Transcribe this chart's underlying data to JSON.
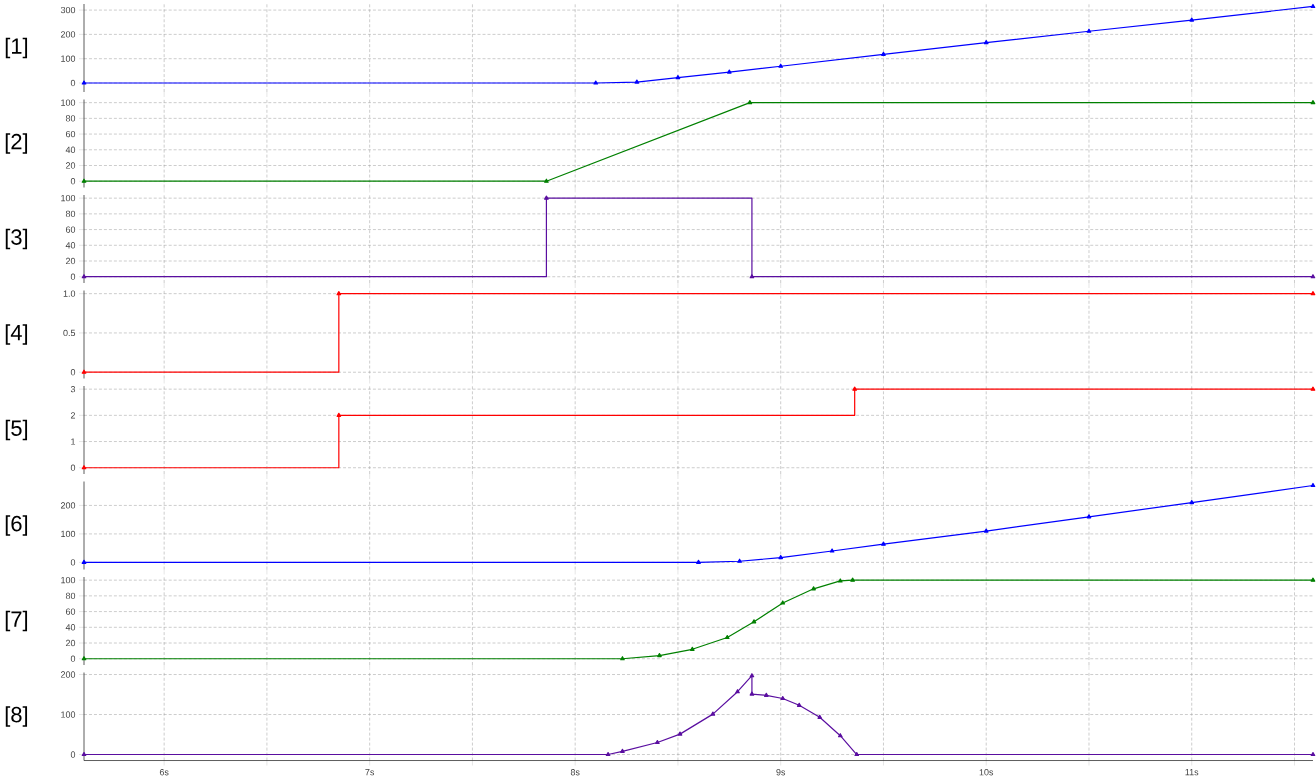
{
  "chart_data": [
    {
      "type": "line",
      "ylabel": "[1]",
      "x": [
        5.61,
        8.1,
        8.3,
        8.5,
        8.75,
        9,
        9.5,
        10,
        10.5,
        11,
        11.59
      ],
      "series": [
        {
          "color": "#0000ff",
          "values": [
            0,
            0,
            4,
            22,
            45,
            69,
            118,
            166,
            213,
            259,
            315
          ]
        }
      ],
      "xlim": [
        5.61,
        11.59
      ],
      "ylim": [
        -37,
        325
      ],
      "yticks": [
        0,
        100,
        200,
        300
      ],
      "xticks": [
        6,
        6.5,
        7,
        7.5,
        8,
        8.5,
        9,
        9.5,
        10,
        10.5,
        11,
        11.5
      ],
      "grid": true,
      "marker": "triangle",
      "tick_labels": "y"
    },
    {
      "type": "line",
      "ylabel": "[2]",
      "x": [
        5.61,
        7.86,
        8.85,
        11.59
      ],
      "series": [
        {
          "color": "#008000",
          "values": [
            0,
            0,
            100,
            100
          ]
        }
      ],
      "xlim": [
        5.61,
        11.59
      ],
      "ylim": [
        -8,
        104
      ],
      "yticks": [
        0,
        20,
        40,
        60,
        80,
        100
      ],
      "xticks": [
        6,
        6.5,
        7,
        7.5,
        8,
        8.5,
        9,
        9.5,
        10,
        10.5,
        11,
        11.5
      ],
      "grid": true,
      "marker": "triangle",
      "tick_labels": "y"
    },
    {
      "type": "step",
      "ylabel": "[3]",
      "x": [
        5.61,
        7.86,
        8.86,
        11.59
      ],
      "series": [
        {
          "color": "#5a0ea0",
          "values": [
            0,
            100,
            0,
            0
          ]
        }
      ],
      "xlim": [
        5.61,
        11.59
      ],
      "ylim": [
        -8,
        104
      ],
      "yticks": [
        0,
        20,
        40,
        60,
        80,
        100
      ],
      "xticks": [
        6,
        6.5,
        7,
        7.5,
        8,
        8.5,
        9,
        9.5,
        10,
        10.5,
        11,
        11.5
      ],
      "grid": true,
      "marker": "triangle",
      "tick_labels": "y"
    },
    {
      "type": "step",
      "ylabel": "[4]",
      "x": [
        5.61,
        6.85,
        11.59
      ],
      "series": [
        {
          "color": "#ff0000",
          "values": [
            0,
            1,
            1
          ]
        }
      ],
      "xlim": [
        5.61,
        11.59
      ],
      "ylim": [
        -0.08,
        1.04
      ],
      "yticks": [
        0,
        0.5,
        {
          "value": 1,
          "label": "1.0"
        }
      ],
      "xticks": [
        6,
        6.5,
        7,
        7.5,
        8,
        8.5,
        9,
        9.5,
        10,
        10.5,
        11,
        11.5
      ],
      "grid": true,
      "marker": "triangle",
      "tick_labels": "y"
    },
    {
      "type": "step",
      "ylabel": "[5]",
      "x": [
        5.61,
        6.85,
        9.36,
        11.59
      ],
      "series": [
        {
          "color": "#ff0000",
          "values": [
            0,
            2,
            3,
            3
          ]
        }
      ],
      "xlim": [
        5.61,
        11.59
      ],
      "ylim": [
        -0.24,
        3.12
      ],
      "yticks": [
        0,
        1,
        2,
        3
      ],
      "xticks": [
        6,
        6.5,
        7,
        7.5,
        8,
        8.5,
        9,
        9.5,
        10,
        10.5,
        11,
        11.5
      ],
      "grid": true,
      "marker": "triangle",
      "tick_labels": "y"
    },
    {
      "type": "line",
      "ylabel": "[6]",
      "x": [
        5.61,
        8.6,
        8.8,
        9,
        9.25,
        9.5,
        10,
        10.5,
        11,
        11.59
      ],
      "series": [
        {
          "color": "#0000ff",
          "values": [
            0,
            0,
            4,
            17,
            40,
            64,
            110,
            160,
            210,
            270
          ]
        }
      ],
      "xlim": [
        5.61,
        11.59
      ],
      "ylim": [
        -25,
        284
      ],
      "yticks": [
        0,
        100,
        200
      ],
      "xticks": [
        6,
        6.5,
        7,
        7.5,
        8,
        8.5,
        9,
        9.5,
        10,
        10.5,
        11,
        11.5
      ],
      "grid": true,
      "marker": "triangle",
      "tick_labels": "y"
    },
    {
      "type": "line",
      "ylabel": "[7]",
      "x": [
        5.61,
        8.23,
        8.41,
        8.57,
        8.74,
        8.87,
        9.01,
        9.16,
        9.29,
        9.35,
        11.59
      ],
      "series": [
        {
          "color": "#008000",
          "values": [
            0,
            0,
            4,
            12,
            27,
            47,
            71,
            89,
            99,
            100,
            100
          ]
        }
      ],
      "xlim": [
        5.61,
        11.59
      ],
      "ylim": [
        -8,
        104
      ],
      "yticks": [
        0,
        20,
        40,
        60,
        80,
        100
      ],
      "xticks": [
        6,
        6.5,
        7,
        7.5,
        8,
        8.5,
        9,
        9.5,
        10,
        10.5,
        11,
        11.5
      ],
      "grid": true,
      "marker": "triangle",
      "tick_labels": "y"
    },
    {
      "type": "line",
      "ylabel": "[8]",
      "x": [
        5.61,
        8.16,
        8.23,
        8.4,
        8.51,
        8.67,
        8.79,
        8.86,
        8.86,
        8.93,
        9.01,
        9.09,
        9.19,
        9.29,
        9.37,
        11.59
      ],
      "series": [
        {
          "color": "#5a0ea0",
          "values": [
            0,
            0,
            8,
            30,
            51,
            101,
            157,
            197,
            151,
            148,
            140,
            123,
            93,
            47,
            0,
            0
          ]
        }
      ],
      "xlim": [
        5.61,
        11.59
      ],
      "ylim": [
        -15,
        205
      ],
      "yticks": [
        0,
        100,
        200
      ],
      "xticks": [
        {
          "value": 6,
          "label": "6s"
        },
        {
          "value": 6.5,
          "label": null
        },
        {
          "value": 7,
          "label": "7s"
        },
        {
          "value": 7.5,
          "label": null
        },
        {
          "value": 8,
          "label": "8s"
        },
        {
          "value": 8.5,
          "label": null
        },
        {
          "value": 9,
          "label": "9s"
        },
        {
          "value": 9.5,
          "label": null
        },
        {
          "value": 10,
          "label": "10s"
        },
        {
          "value": 10.5,
          "label": null
        },
        {
          "value": 11,
          "label": "11s"
        },
        {
          "value": 11.5,
          "label": null
        }
      ],
      "grid": true,
      "marker": "triangle"
    }
  ]
}
